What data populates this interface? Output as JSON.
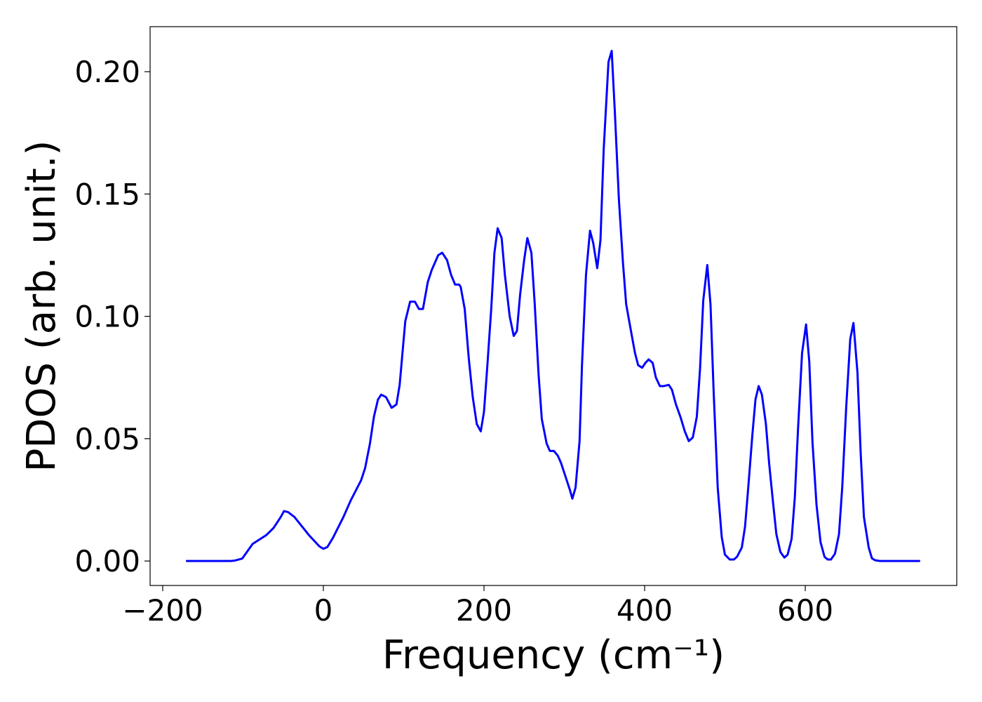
{
  "chart_data": {
    "type": "line",
    "xlabel": "Frequency (cm⁻¹)",
    "ylabel": "PDOS (arb. unit.)",
    "color": "#0000ff",
    "grid": false,
    "xlim": [
      -215.7,
      788.6
    ],
    "ylim": [
      -0.01,
      0.2184
    ],
    "xticks": [
      {
        "value": -200,
        "label": "−200"
      },
      0,
      200,
      400,
      600
    ],
    "yticks": [
      {
        "value": 0,
        "label": "0.00"
      },
      {
        "value": 0.05,
        "label": "0.05"
      },
      {
        "value": 0.1,
        "label": "0.10"
      },
      {
        "value": 0.15,
        "label": "0.15"
      },
      {
        "value": 0.2,
        "label": "0.20"
      }
    ],
    "x": [
      -171,
      -115,
      -110,
      -101,
      -88,
      -71,
      -62,
      -53,
      -49,
      -44,
      -36,
      -18,
      -5,
      0,
      5,
      12,
      25,
      34,
      47,
      52,
      58,
      63,
      68,
      72,
      78,
      85,
      91,
      95,
      102,
      108,
      114,
      119,
      124,
      130,
      135,
      143,
      148,
      154,
      159,
      164,
      169,
      171,
      176,
      181,
      186,
      191,
      196,
      200,
      204,
      209,
      213,
      217,
      222,
      226,
      232,
      237,
      241,
      245,
      250,
      254,
      259,
      263,
      268,
      272,
      278,
      282,
      287,
      292,
      296,
      301,
      307,
      310,
      314,
      319,
      322,
      327,
      332,
      336,
      341,
      345,
      349,
      355,
      359,
      363,
      368,
      373,
      377,
      383,
      388,
      392,
      397,
      401,
      405,
      410,
      414,
      419,
      424,
      430,
      434,
      439,
      445,
      450,
      455,
      460,
      465,
      469,
      473,
      478,
      482,
      486,
      491,
      496,
      500,
      506,
      511,
      515,
      521,
      525,
      529,
      534,
      538,
      542,
      546,
      551,
      555,
      560,
      564,
      569,
      574,
      578,
      583,
      587,
      591,
      596,
      601,
      605,
      609,
      614,
      619,
      624,
      628,
      632,
      637,
      642,
      646,
      651,
      656,
      660,
      665,
      669,
      673,
      679,
      683,
      687,
      693,
      743
    ],
    "values": [
      0,
      0,
      0.0002,
      0.001,
      0.007,
      0.0106,
      0.0135,
      0.018,
      0.0204,
      0.02,
      0.018,
      0.0106,
      0.006,
      0.005,
      0.0057,
      0.0095,
      0.018,
      0.0247,
      0.033,
      0.038,
      0.048,
      0.059,
      0.066,
      0.068,
      0.067,
      0.0626,
      0.064,
      0.072,
      0.098,
      0.106,
      0.106,
      0.103,
      0.103,
      0.114,
      0.119,
      0.125,
      0.126,
      0.123,
      0.117,
      0.113,
      0.113,
      0.112,
      0.103,
      0.083,
      0.067,
      0.056,
      0.053,
      0.061,
      0.079,
      0.103,
      0.126,
      0.136,
      0.132,
      0.117,
      0.1,
      0.092,
      0.094,
      0.109,
      0.123,
      0.132,
      0.126,
      0.106,
      0.076,
      0.058,
      0.048,
      0.045,
      0.045,
      0.043,
      0.04,
      0.035,
      0.029,
      0.0255,
      0.03,
      0.049,
      0.08,
      0.117,
      0.135,
      0.13,
      0.1197,
      0.131,
      0.168,
      0.204,
      0.2085,
      0.183,
      0.1475,
      0.122,
      0.105,
      0.094,
      0.085,
      0.08,
      0.079,
      0.081,
      0.0824,
      0.081,
      0.075,
      0.0715,
      0.0715,
      0.072,
      0.07,
      0.064,
      0.0585,
      0.053,
      0.049,
      0.0505,
      0.059,
      0.0786,
      0.1065,
      0.121,
      0.105,
      0.0686,
      0.03,
      0.0098,
      0.0026,
      0.0006,
      0.0006,
      0.0017,
      0.0055,
      0.014,
      0.03,
      0.051,
      0.066,
      0.0715,
      0.068,
      0.056,
      0.04,
      0.0235,
      0.011,
      0.0037,
      0.0014,
      0.0026,
      0.009,
      0.026,
      0.054,
      0.085,
      0.0967,
      0.0815,
      0.0485,
      0.023,
      0.0077,
      0.0017,
      0.0006,
      0.0006,
      0.003,
      0.011,
      0.03,
      0.063,
      0.0907,
      0.0973,
      0.077,
      0.044,
      0.018,
      0.0055,
      0.0011,
      0.0003,
      0,
      0
    ]
  }
}
